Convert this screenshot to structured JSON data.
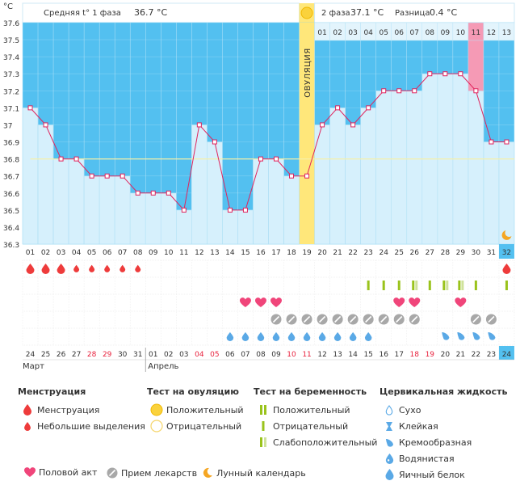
{
  "chart_data": {
    "type": "line",
    "unit_label": "°C",
    "header": {
      "phase1_label": "Средняя t° 1 фаза",
      "phase1_value": "36.7 °C",
      "phase2_label": "2 фаза",
      "phase2_value": "37.1 °C",
      "diff_label": "Разница",
      "diff_value": "0.4 °C"
    },
    "ovulation_label": "ОВУЛЯЦИЯ",
    "ovulation_day": 19,
    "cover_line": 36.8,
    "ylim": [
      36.3,
      37.6
    ],
    "yticks": [
      "37.6",
      "37.5",
      "37.4",
      "37.3",
      "37.2",
      "37.1",
      "37",
      "36.9",
      "36.8",
      "36.7",
      "36.6",
      "36.5",
      "36.4",
      "36.3"
    ],
    "cycle_days": [
      "01",
      "02",
      "03",
      "04",
      "05",
      "06",
      "07",
      "08",
      "09",
      "10",
      "11",
      "12",
      "13",
      "14",
      "15",
      "16",
      "17",
      "18",
      "19",
      "20",
      "21",
      "22",
      "23",
      "24",
      "25",
      "26",
      "27",
      "28",
      "29",
      "30",
      "31",
      "32"
    ],
    "phase2_days": [
      "01",
      "02",
      "03",
      "04",
      "05",
      "06",
      "07",
      "08",
      "09",
      "10",
      "11",
      "12",
      "13"
    ],
    "highlight_phase2_day": "11",
    "current_day": "32",
    "values": [
      37.1,
      37.0,
      36.8,
      36.8,
      36.7,
      36.7,
      36.7,
      36.6,
      36.6,
      36.6,
      36.5,
      37.0,
      36.9,
      36.5,
      36.5,
      36.8,
      36.8,
      36.7,
      36.7,
      37.0,
      37.1,
      37.0,
      37.1,
      37.2,
      37.2,
      37.2,
      37.3,
      37.3,
      37.3,
      37.2,
      36.9,
      36.9
    ],
    "dates": [
      "24",
      "25",
      "26",
      "27",
      "28",
      "29",
      "30",
      "31",
      "01",
      "02",
      "03",
      "04",
      "05",
      "06",
      "07",
      "08",
      "09",
      "10",
      "11",
      "12",
      "13",
      "14",
      "15",
      "16",
      "17",
      "18",
      "19",
      "20",
      "21",
      "22",
      "23",
      "24"
    ],
    "weekend_flags": [
      0,
      0,
      0,
      0,
      1,
      1,
      0,
      0,
      0,
      0,
      0,
      1,
      1,
      0,
      0,
      0,
      0,
      1,
      1,
      0,
      0,
      0,
      0,
      0,
      0,
      1,
      1,
      0,
      0,
      0,
      0,
      0
    ],
    "month_labels": {
      "first": "Март",
      "second": "Апрель"
    },
    "rows": {
      "menstruation": [
        "big",
        "big",
        "big",
        "small",
        "small",
        "small",
        "small",
        "small",
        "",
        "",
        "",
        "",
        "",
        "",
        "",
        "",
        "",
        "",
        "",
        "",
        "",
        "",
        "",
        "",
        "",
        "",
        "",
        "",
        "",
        "",
        "",
        "big"
      ],
      "pregnancy": [
        "",
        "",
        "",
        "",
        "",
        "",
        "",
        "",
        "",
        "",
        "",
        "",
        "",
        "",
        "",
        "",
        "",
        "",
        "",
        "",
        "",
        "",
        "pos",
        "neg",
        "pos",
        "weak",
        "pos",
        "weak",
        "weak",
        "pos",
        "",
        "pos"
      ],
      "sex": [
        "",
        "",
        "",
        "",
        "",
        "",
        "",
        "",
        "",
        "",
        "",
        "",
        "",
        "",
        "1",
        "1",
        "1",
        "",
        "",
        "",
        "",
        "",
        "",
        "",
        "1",
        "1",
        "",
        "",
        "1",
        "",
        "",
        ""
      ],
      "meds": [
        "",
        "",
        "",
        "",
        "",
        "",
        "",
        "",
        "",
        "",
        "",
        "",
        "",
        "",
        "",
        "",
        "1",
        "1",
        "1",
        "1",
        "1",
        "1",
        "1",
        "1",
        "1",
        "1",
        "",
        "",
        "",
        "1",
        "1",
        ""
      ],
      "fluid": [
        "",
        "",
        "",
        "",
        "",
        "",
        "",
        "",
        "",
        "",
        "",
        "",
        "",
        "",
        "",
        "",
        "",
        "",
        "",
        "",
        "",
        "",
        "",
        "",
        "",
        "",
        "",
        "",
        "",
        "",
        "",
        ""
      ]
    },
    "fluid_row": [
      "",
      "",
      "",
      "",
      "",
      "",
      "",
      "",
      "",
      "",
      "",
      "",
      "",
      "",
      "",
      "",
      "",
      "",
      "",
      "",
      "",
      "",
      "",
      "",
      "",
      "",
      "",
      "",
      "",
      "",
      "",
      ""
    ],
    "moon_day": 32
  },
  "legend": {
    "menstr": {
      "title": "Менструация",
      "items": [
        "Менструация",
        "Небольшие выделения"
      ]
    },
    "ovul": {
      "title": "Тест на овуляцию",
      "items": [
        "Положительный",
        "Отрицательный"
      ]
    },
    "preg": {
      "title": "Тест на беременность",
      "items": [
        "Положительный",
        "Отрицательный",
        "Слабоположительный"
      ]
    },
    "cerv": {
      "title": "Цервикальная жидкость",
      "items": [
        "Сухо",
        "Клейкая",
        "Кремообразная",
        "Водянистая",
        "Яичный белок"
      ]
    },
    "bottom": [
      "Половой акт",
      "Прием лекарств",
      "Лунный календарь"
    ]
  },
  "colors": {
    "sky": "#53c0f0",
    "bar": "#d6f0fc",
    "line": "#e0245e",
    "ovul": "#ffe77a",
    "pink": "#f59ab5",
    "menstr": "#ee3b3b",
    "green": "#9ac31c",
    "green_light": "#cfe29a",
    "heart": "#f0457a",
    "pill": "#a8a8a8",
    "drop": "#5aa9e6",
    "moon": "#f5a623"
  }
}
